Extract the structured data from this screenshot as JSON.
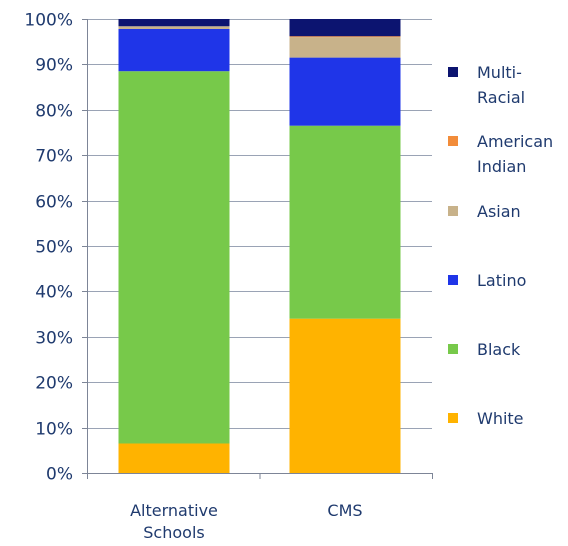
{
  "chart_data": {
    "type": "bar",
    "stacked": true,
    "categories": [
      [
        "Alternative",
        "Schools"
      ],
      [
        "CMS"
      ]
    ],
    "ylim": [
      0,
      100
    ],
    "yticks": [
      0,
      10,
      20,
      30,
      40,
      50,
      60,
      70,
      80,
      90,
      100
    ],
    "ytick_labels": [
      "0%",
      "10%",
      "20%",
      "30%",
      "40%",
      "50%",
      "60%",
      "70%",
      "80%",
      "90%",
      "100%"
    ],
    "grid": true,
    "legend_position": "right",
    "series": [
      {
        "name": "White",
        "color": "#ffb300",
        "values": [
          6.5,
          34
        ]
      },
      {
        "name": "Black",
        "color": "#77c94a",
        "values": [
          82,
          42.5
        ]
      },
      {
        "name": "Latino",
        "color": "#1f35e8",
        "values": [
          9.3,
          15
        ]
      },
      {
        "name": "Asian",
        "color": "#c8b28a",
        "values": [
          0.6,
          4.5
        ]
      },
      {
        "name": "American Indian",
        "color": "#f28c3a",
        "values": [
          0,
          0.2
        ]
      },
      {
        "name": "Multi-Racial",
        "color": "#0c1470",
        "values": [
          1.6,
          3.8
        ]
      }
    ],
    "legend": [
      {
        "lines": [
          "Multi-",
          "Racial"
        ],
        "color": "#0c1470"
      },
      {
        "lines": [
          "American",
          "Indian"
        ],
        "color": "#f28c3a"
      },
      {
        "lines": [
          "Asian"
        ],
        "color": "#c8b28a"
      },
      {
        "lines": [
          "Latino"
        ],
        "color": "#1f35e8"
      },
      {
        "lines": [
          "Black"
        ],
        "color": "#77c94a"
      },
      {
        "lines": [
          "White"
        ],
        "color": "#ffb300"
      }
    ]
  }
}
